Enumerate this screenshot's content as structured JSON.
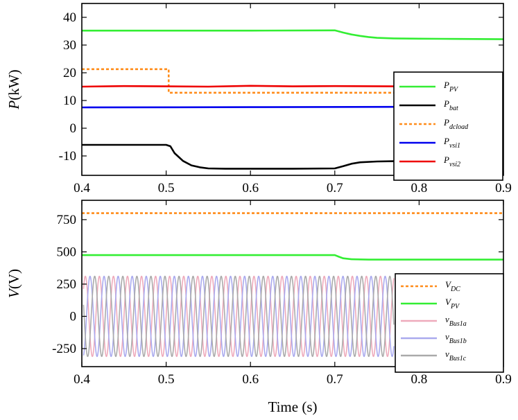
{
  "chart_data": [
    {
      "type": "line",
      "ylabel_var": "P",
      "ylabel_unit": "(kW)",
      "xlim": [
        0.4,
        0.9
      ],
      "ylim": [
        -17,
        45
      ],
      "xticks": [
        0.4,
        0.5,
        0.6,
        0.7,
        0.8,
        0.9
      ],
      "xtick_labels": [
        "0.4",
        "0.5",
        "0.6",
        "0.7",
        "0.8",
        "0.9"
      ],
      "yticks": [
        -10,
        0,
        10,
        20,
        30,
        40
      ],
      "ytick_labels": [
        "-10",
        "0",
        "10",
        "20",
        "30",
        "40"
      ],
      "legend_position": "lower right",
      "series": [
        {
          "name": "PPV",
          "sym": "P",
          "sub": "PV",
          "color": "#33ee33",
          "dash": false,
          "x": [
            0.4,
            0.5,
            0.6,
            0.7,
            0.71,
            0.72,
            0.73,
            0.74,
            0.75,
            0.77,
            0.8,
            0.85,
            0.9
          ],
          "y": [
            35.2,
            35.2,
            35.2,
            35.3,
            34.5,
            33.8,
            33.3,
            32.9,
            32.6,
            32.4,
            32.3,
            32.2,
            32.1
          ]
        },
        {
          "name": "Pbat",
          "sym": "P",
          "sub": "bat",
          "color": "#000000",
          "dash": false,
          "x": [
            0.4,
            0.5,
            0.505,
            0.51,
            0.52,
            0.53,
            0.54,
            0.55,
            0.57,
            0.6,
            0.65,
            0.7,
            0.71,
            0.72,
            0.73,
            0.75,
            0.77
          ],
          "y": [
            -6.0,
            -6.0,
            -6.5,
            -9.0,
            -11.8,
            -13.4,
            -14.1,
            -14.5,
            -14.6,
            -14.6,
            -14.6,
            -14.5,
            -13.7,
            -12.8,
            -12.3,
            -12.0,
            -11.9
          ]
        },
        {
          "name": "Pdcload",
          "sym": "P",
          "sub": "dcload",
          "color": "#ff8c1a",
          "dash": true,
          "x": [
            0.4,
            0.503,
            0.503,
            0.77
          ],
          "y": [
            21.3,
            21.3,
            12.8,
            12.8
          ]
        },
        {
          "name": "Pvsi1",
          "sym": "P",
          "sub": "vsi1",
          "color": "#0000ee",
          "dash": false,
          "x": [
            0.4,
            0.6,
            0.77
          ],
          "y": [
            7.5,
            7.6,
            7.7
          ]
        },
        {
          "name": "Pvsi2",
          "sym": "P",
          "sub": "vsi2",
          "color": "#ee0000",
          "dash": false,
          "x": [
            0.4,
            0.45,
            0.5,
            0.55,
            0.6,
            0.65,
            0.7,
            0.77
          ],
          "y": [
            15.0,
            15.2,
            15.1,
            15.0,
            15.3,
            15.1,
            15.2,
            15.1
          ]
        }
      ]
    },
    {
      "type": "line",
      "ylabel_var": "V",
      "ylabel_unit": "(V)",
      "xlabel": "Time (s)",
      "xlim": [
        0.4,
        0.9
      ],
      "ylim": [
        -390,
        900
      ],
      "xticks": [
        0.4,
        0.5,
        0.6,
        0.7,
        0.8,
        0.9
      ],
      "xtick_labels": [
        "0.4",
        "0.5",
        "0.6",
        "0.7",
        "0.8",
        "0.9"
      ],
      "yticks": [
        -250,
        0,
        250,
        500,
        750
      ],
      "ytick_labels": [
        "-250",
        "0",
        "250",
        "500",
        "750"
      ],
      "legend_position": "lower right",
      "series": [
        {
          "name": "VDC",
          "sym": "V",
          "sub": "DC",
          "color": "#ff8c1a",
          "dash": true,
          "x": [
            0.4,
            0.9
          ],
          "y": [
            800,
            800
          ]
        },
        {
          "name": "VPV",
          "sym": "V",
          "sub": "PV",
          "color": "#33ee33",
          "dash": false,
          "x": [
            0.4,
            0.7,
            0.705,
            0.71,
            0.72,
            0.74,
            0.77,
            0.8,
            0.9
          ],
          "y": [
            475,
            475,
            462,
            450,
            443,
            440,
            440,
            440,
            440
          ]
        },
        {
          "name": "vBus1a",
          "sym": "v",
          "sub": "Bus1a",
          "color": "#eeaabb",
          "dash": false,
          "waveform": {
            "amplitude": 311,
            "frequency_hz": 60,
            "phase_deg": 0,
            "x_start": 0.402,
            "x_end": 0.77
          }
        },
        {
          "name": "vBus1b",
          "sym": "v",
          "sub": "Bus1b",
          "color": "#aaaaee",
          "dash": false,
          "waveform": {
            "amplitude": 311,
            "frequency_hz": 60,
            "phase_deg": -120,
            "x_start": 0.402,
            "x_end": 0.77
          }
        },
        {
          "name": "vBus1c",
          "sym": "v",
          "sub": "Bus1c",
          "color": "#aaaaaa",
          "dash": false,
          "waveform": {
            "amplitude": 311,
            "frequency_hz": 60,
            "phase_deg": 120,
            "x_start": 0.402,
            "x_end": 0.77
          }
        }
      ]
    }
  ]
}
